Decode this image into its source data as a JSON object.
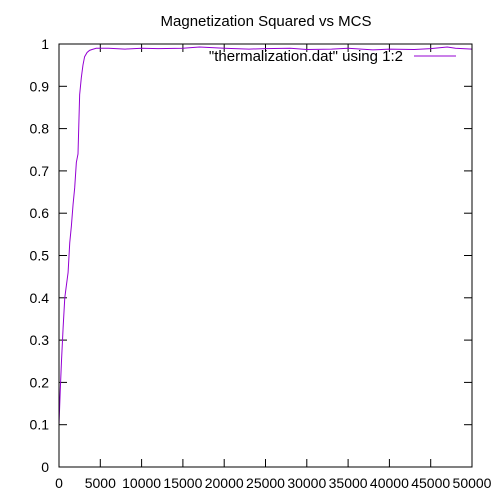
{
  "chart_data": {
    "type": "line",
    "title": "Magnetization Squared vs MCS",
    "xlabel": "",
    "ylabel": "",
    "xlim": [
      0,
      50000
    ],
    "ylim": [
      0,
      1
    ],
    "xticks": [
      0,
      5000,
      10000,
      15000,
      20000,
      25000,
      30000,
      35000,
      40000,
      45000,
      50000
    ],
    "xtick_labels": [
      "0",
      "5000",
      "10000",
      "15000",
      "20000",
      "25000",
      "30000",
      "35000",
      "40000",
      "45000",
      "50000"
    ],
    "yticks": [
      0,
      0.1,
      0.2,
      0.3,
      0.4,
      0.5,
      0.6,
      0.7,
      0.8,
      0.9,
      1
    ],
    "ytick_labels": [
      "0",
      "0.1",
      "0.2",
      "0.3",
      "0.4",
      "0.5",
      "0.6",
      "0.7",
      "0.8",
      "0.9",
      "1"
    ],
    "grid": false,
    "legend_position": "top-right",
    "series": [
      {
        "name": "\"thermalization.dat\" using 1:2",
        "color": "#9400d3",
        "x": [
          0,
          150,
          300,
          500,
          700,
          900,
          1100,
          1300,
          1500,
          1700,
          1900,
          2100,
          2300,
          2500,
          2700,
          2900,
          3100,
          3400,
          3700,
          4000,
          4500,
          5000,
          6000,
          8000,
          10000,
          12000,
          15000,
          17000,
          20000,
          23000,
          25000,
          28000,
          30000,
          33000,
          35000,
          38000,
          40000,
          43000,
          45000,
          47000,
          48000,
          50000
        ],
        "y": [
          0.1,
          0.18,
          0.25,
          0.33,
          0.4,
          0.43,
          0.46,
          0.53,
          0.57,
          0.62,
          0.66,
          0.72,
          0.74,
          0.88,
          0.92,
          0.95,
          0.97,
          0.98,
          0.985,
          0.987,
          0.99,
          0.99,
          0.99,
          0.988,
          0.99,
          0.989,
          0.99,
          0.993,
          0.99,
          0.988,
          0.989,
          0.99,
          0.987,
          0.988,
          0.99,
          0.986,
          0.988,
          0.987,
          0.989,
          0.993,
          0.99,
          0.988
        ]
      }
    ]
  }
}
